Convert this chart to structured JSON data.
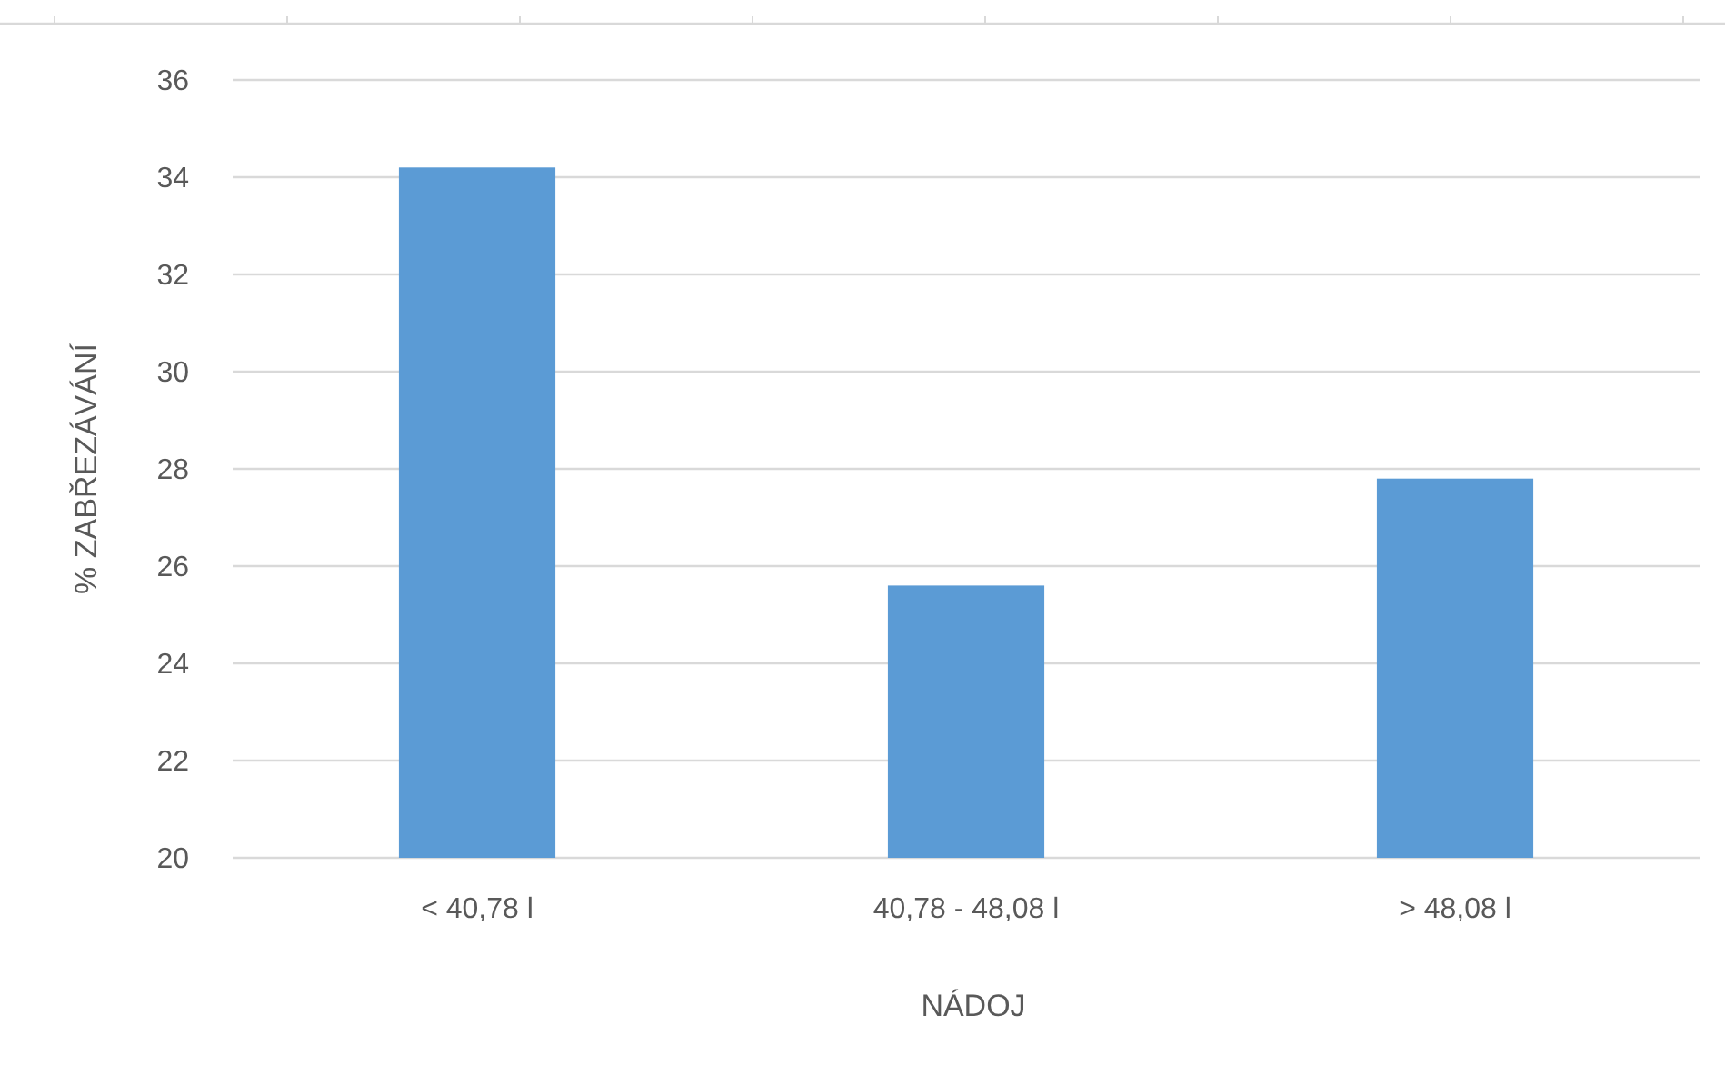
{
  "chart_data": {
    "type": "bar",
    "xlabel": "NÁDOJ",
    "ylabel": "% ZABŘEZÁVÁNÍ",
    "categories": [
      "< 40,78 l",
      "40,78 - 48,08 l",
      "> 48,08 l"
    ],
    "values": [
      34.2,
      25.6,
      27.8
    ],
    "color": "#5b9bd5",
    "ylim": [
      20,
      36
    ],
    "yticks": [
      20,
      22,
      24,
      26,
      28,
      30,
      32,
      34,
      36
    ],
    "grid": "y"
  }
}
